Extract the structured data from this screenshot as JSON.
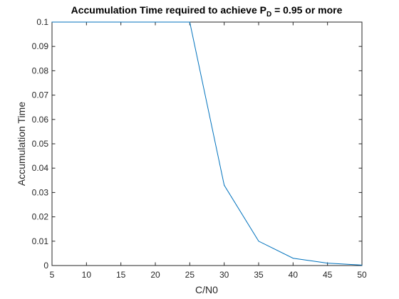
{
  "chart_data": {
    "type": "line",
    "title": {
      "main": "Accumulation Time required to achieve P",
      "subscript": "D",
      "rest": " = 0.95 or more"
    },
    "xlabel": "C/N0",
    "ylabel": "Accumulation Time",
    "xlim": [
      5,
      50
    ],
    "ylim": [
      0,
      0.1
    ],
    "xticks": [
      5,
      10,
      15,
      20,
      25,
      30,
      35,
      40,
      45,
      50
    ],
    "yticks": [
      0,
      0.01,
      0.02,
      0.03,
      0.04,
      0.05,
      0.06,
      0.07,
      0.08,
      0.09,
      0.1
    ],
    "xtick_labels": [
      "5",
      "10",
      "15",
      "20",
      "25",
      "30",
      "35",
      "40",
      "45",
      "50"
    ],
    "ytick_labels": [
      "0",
      "0.01",
      "0.02",
      "0.03",
      "0.04",
      "0.05",
      "0.06",
      "0.07",
      "0.08",
      "0.09",
      "0.1"
    ],
    "grid": false,
    "series": [
      {
        "color": "#0072bd",
        "x": [
          5,
          10,
          15,
          20,
          25,
          30,
          35,
          40,
          45,
          50
        ],
        "y": [
          0.1,
          0.1,
          0.1,
          0.1,
          0.1,
          0.033,
          0.01,
          0.003,
          0.001,
          0.0002
        ]
      }
    ]
  }
}
